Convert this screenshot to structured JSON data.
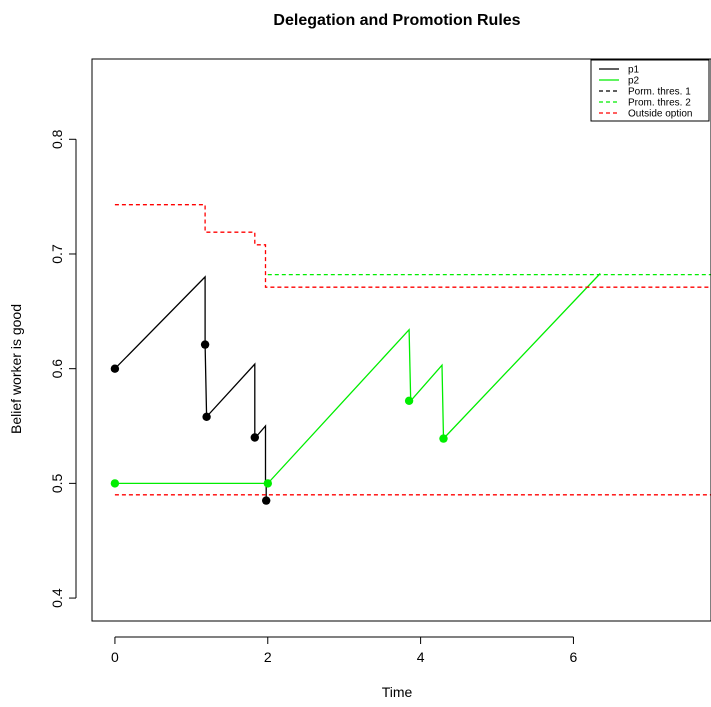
{
  "chart_data": {
    "type": "line",
    "title": "Delegation and Promotion Rules",
    "xlabel": "Time",
    "ylabel": "Belief worker is good",
    "xlim": [
      -0.3,
      7.8
    ],
    "ylim": [
      0.38,
      0.87
    ],
    "x_ticks": [
      0,
      2,
      4,
      6
    ],
    "y_ticks": [
      0.4,
      0.5,
      0.6,
      0.7,
      0.8
    ],
    "x_tick_labels": [
      "0",
      "2",
      "4",
      "6"
    ],
    "y_tick_labels": [
      "0.4",
      "0.5",
      "0.6",
      "0.7",
      "0.8"
    ],
    "legend_position": "top-right",
    "grid": false,
    "series": [
      {
        "name": "p1",
        "style": "solid",
        "color": "#000000",
        "x": [
          0.0,
          1.18,
          1.18,
          1.2,
          1.2,
          1.83,
          1.83,
          1.84,
          1.97,
          1.97,
          1.98,
          1.98
        ],
        "y": [
          0.6,
          0.68,
          0.621,
          0.558,
          0.558,
          0.604,
          0.54,
          0.54,
          0.55,
          0.5,
          0.5,
          0.485
        ]
      },
      {
        "name": "p2",
        "style": "solid",
        "color": "#00ee00",
        "x": [
          0.0,
          2.0,
          3.85,
          3.87,
          4.28,
          4.3,
          6.35
        ],
        "y": [
          0.5,
          0.5,
          0.634,
          0.572,
          0.603,
          0.539,
          0.683
        ]
      },
      {
        "name": "Porm. thres. 1",
        "style": "dashed",
        "color": "#000000",
        "x": [],
        "y": []
      },
      {
        "name": "Prom. thres. 2",
        "style": "dashed",
        "color": "#00ee00",
        "x": [
          2.0,
          7.8
        ],
        "y": [
          0.682,
          0.682
        ]
      },
      {
        "name": "Outside option",
        "style": "dashed",
        "color": "#ff0000",
        "x": [
          0.0,
          1.18,
          1.18,
          1.83,
          1.83,
          1.97,
          1.97,
          7.8
        ],
        "y": [
          0.743,
          0.743,
          0.719,
          0.719,
          0.708,
          0.708,
          0.671,
          0.671
        ]
      },
      {
        "name": "",
        "style": "dashed",
        "color": "#ff0000",
        "x": [
          0.0,
          7.8
        ],
        "y": [
          0.49,
          0.49
        ]
      }
    ],
    "points": [
      {
        "series": "p1",
        "color": "#000000",
        "x": [
          0.0,
          1.18,
          1.2,
          1.83,
          1.98
        ],
        "y": [
          0.6,
          0.621,
          0.558,
          0.54,
          0.485
        ]
      },
      {
        "series": "p2",
        "color": "#00ee00",
        "x": [
          0.0,
          2.0,
          3.85,
          4.3
        ],
        "y": [
          0.5,
          0.5,
          0.572,
          0.539
        ]
      }
    ]
  }
}
